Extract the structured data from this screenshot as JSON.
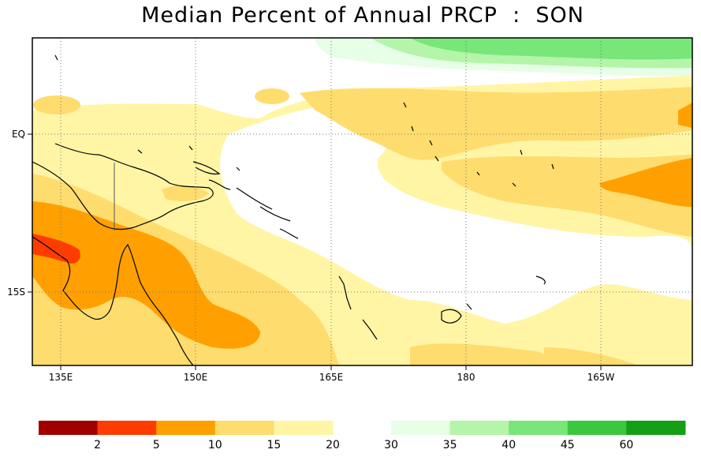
{
  "title": "Median Percent of Annual PRCP  :  SON",
  "lon_labels": [
    "135E",
    "150E",
    "165E",
    "180",
    "165W"
  ],
  "lat_labels": [
    "EQ",
    "15S"
  ],
  "colorbar": {
    "dry": {
      "colors": [
        "#a00000",
        "#ff3c00",
        "#ffa000",
        "#ffdc6e",
        "#fff5a5"
      ],
      "labels": [
        "2",
        "5",
        "10",
        "15",
        "20"
      ]
    },
    "wet": {
      "colors": [
        "#e6ffe6",
        "#b4f5aa",
        "#78e678",
        "#3cc83c",
        "#14a014"
      ],
      "labels": [
        "30",
        "35",
        "40",
        "45",
        "60"
      ]
    }
  }
}
